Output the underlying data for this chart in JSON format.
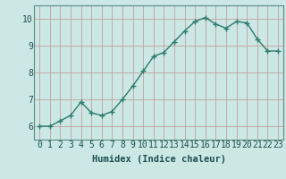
{
  "x": [
    0,
    1,
    2,
    3,
    4,
    5,
    6,
    7,
    8,
    9,
    10,
    11,
    12,
    13,
    14,
    15,
    16,
    17,
    18,
    19,
    20,
    21,
    22,
    23
  ],
  "y": [
    6.0,
    6.0,
    6.2,
    6.4,
    6.9,
    6.5,
    6.4,
    6.55,
    7.0,
    7.5,
    8.05,
    8.6,
    8.75,
    9.15,
    9.55,
    9.9,
    10.05,
    9.8,
    9.65,
    9.9,
    9.85,
    9.25,
    8.8,
    8.8
  ],
  "xlabel": "Humidex (Indice chaleur)",
  "ylim": [
    5.5,
    10.5
  ],
  "xlim": [
    -0.5,
    23.5
  ],
  "yticks": [
    6,
    7,
    8,
    9,
    10
  ],
  "xticks": [
    0,
    1,
    2,
    3,
    4,
    5,
    6,
    7,
    8,
    9,
    10,
    11,
    12,
    13,
    14,
    15,
    16,
    17,
    18,
    19,
    20,
    21,
    22,
    23
  ],
  "line_color": "#2d7a6e",
  "marker": "+",
  "marker_size": 4,
  "marker_linewidth": 1.0,
  "line_width": 1.0,
  "bg_color": "#cce8e4",
  "grid_color": "#c0a0a0",
  "tick_label_color": "#1a5050",
  "xlabel_color": "#1a5050",
  "xlabel_fontsize": 7.5,
  "tick_fontsize": 7.0
}
